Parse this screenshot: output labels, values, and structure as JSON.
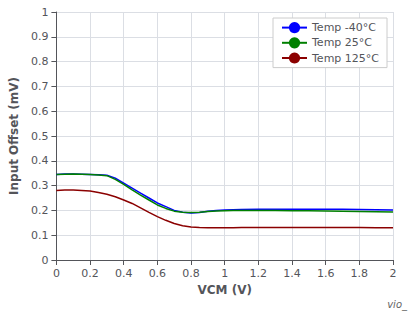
{
  "chart_data": {
    "type": "line",
    "title": "",
    "xlabel": "VCM (V)",
    "ylabel": "Input Offset (mV)",
    "annotation": "vio_",
    "xlim": [
      0,
      2
    ],
    "ylim": [
      0,
      1
    ],
    "xticks": [
      0,
      0.2,
      0.4,
      0.6,
      0.8,
      1,
      1.2,
      1.4,
      1.6,
      1.8,
      2
    ],
    "yticks": [
      0,
      0.1,
      0.2,
      0.3,
      0.4,
      0.5,
      0.6,
      0.7,
      0.8,
      0.9,
      1
    ],
    "grid": true,
    "legend": "upper right",
    "x": [
      0.0,
      0.05,
      0.1,
      0.15,
      0.2,
      0.25,
      0.3,
      0.35,
      0.4,
      0.45,
      0.5,
      0.55,
      0.6,
      0.65,
      0.7,
      0.75,
      0.8,
      0.85,
      0.9,
      0.95,
      1.0,
      1.05,
      1.1,
      1.2,
      1.3,
      1.4,
      1.5,
      1.6,
      1.7,
      1.8,
      1.9,
      2.0
    ],
    "series": [
      {
        "name": "Temp -40°C",
        "color": "#0000FF",
        "values": [
          0.345,
          0.347,
          0.347,
          0.346,
          0.345,
          0.344,
          0.342,
          0.33,
          0.31,
          0.29,
          0.27,
          0.25,
          0.23,
          0.215,
          0.2,
          0.193,
          0.19,
          0.192,
          0.197,
          0.2,
          0.202,
          0.203,
          0.204,
          0.205,
          0.205,
          0.205,
          0.205,
          0.205,
          0.205,
          0.204,
          0.203,
          0.202
        ]
      },
      {
        "name": "Temp 25°C",
        "color": "#008000",
        "values": [
          0.345,
          0.346,
          0.347,
          0.346,
          0.345,
          0.343,
          0.34,
          0.325,
          0.305,
          0.283,
          0.262,
          0.242,
          0.222,
          0.208,
          0.197,
          0.193,
          0.192,
          0.193,
          0.196,
          0.198,
          0.199,
          0.2,
          0.2,
          0.2,
          0.2,
          0.199,
          0.199,
          0.198,
          0.197,
          0.196,
          0.195,
          0.194
        ]
      },
      {
        "name": "Temp 125°C",
        "color": "#8B0000",
        "values": [
          0.28,
          0.282,
          0.282,
          0.28,
          0.278,
          0.272,
          0.265,
          0.255,
          0.242,
          0.228,
          0.21,
          0.192,
          0.175,
          0.16,
          0.147,
          0.138,
          0.133,
          0.131,
          0.13,
          0.13,
          0.13,
          0.13,
          0.131,
          0.131,
          0.131,
          0.131,
          0.131,
          0.131,
          0.131,
          0.131,
          0.13,
          0.13
        ]
      }
    ]
  }
}
